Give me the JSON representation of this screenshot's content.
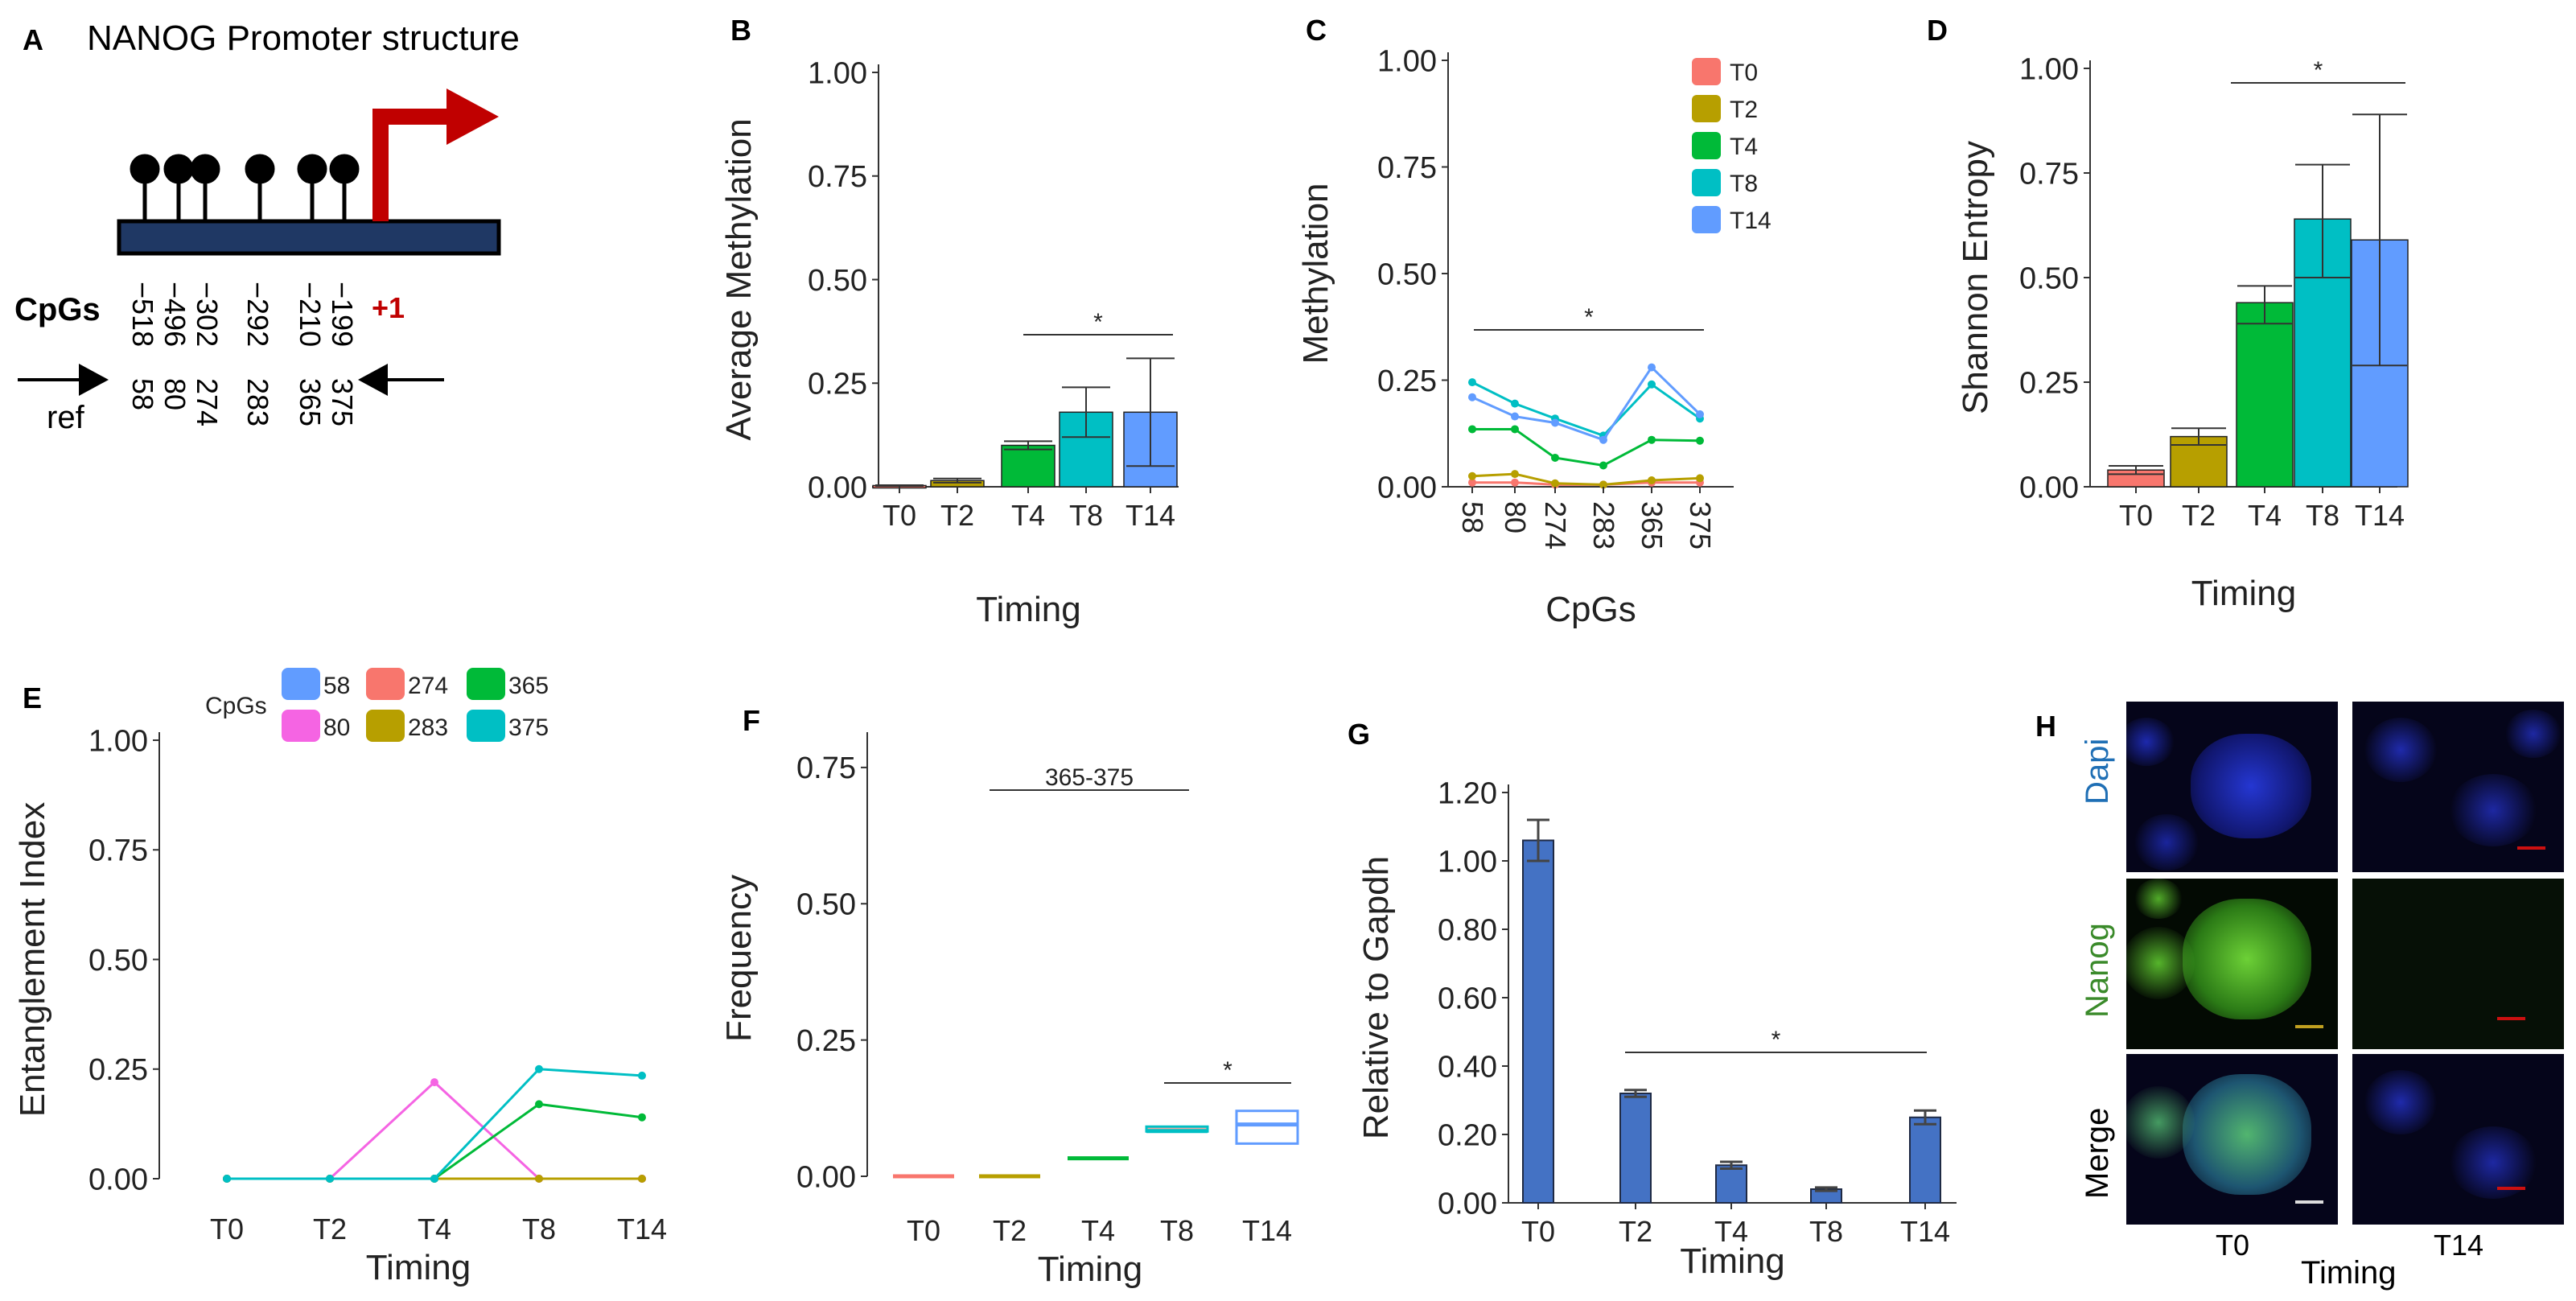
{
  "colors": {
    "T0": "#F8766D",
    "T2": "#B79F00",
    "T4": "#00BA38",
    "T8": "#00BFC4",
    "T14": "#619CFF",
    "pink": "#F564E3",
    "navy": "#1F3864",
    "arrow_red": "#C00000",
    "bar_blue": "#4472C4",
    "dapi": "#1F6FB5",
    "nanog": "#3A8A2A"
  },
  "panel_letters": [
    "A",
    "B",
    "C",
    "D",
    "E",
    "F",
    "G",
    "H"
  ],
  "panelA": {
    "title": "NANOG Promoter structure",
    "tss_label": "+1",
    "cpgs_label": "CpGs",
    "ref_label": "ref",
    "positions": [
      "−518",
      "−496",
      "−302",
      "−292",
      "−210",
      "−199"
    ],
    "refs": [
      "58",
      "80",
      "274",
      "283",
      "365",
      "375"
    ]
  },
  "chart_data": [
    {
      "panel": "B",
      "type": "bar",
      "ylabel": "Average Methylation",
      "xlabel": "Timing",
      "categories": [
        "T0",
        "T2",
        "T4",
        "T8",
        "T14"
      ],
      "values": [
        0.003,
        0.015,
        0.1,
        0.18,
        0.18
      ],
      "error_low": [
        0.002,
        0.01,
        0.09,
        0.12,
        0.05
      ],
      "error_high": [
        0.004,
        0.02,
        0.11,
        0.24,
        0.31
      ],
      "ylim": [
        0,
        1.0
      ],
      "yticks": [
        "0.00",
        "0.25",
        "0.50",
        "0.75",
        "1.00"
      ],
      "annotation": "*"
    },
    {
      "panel": "C",
      "type": "line",
      "ylabel": "Methylation",
      "xlabel": "CpGs",
      "categories": [
        "58",
        "80",
        "274",
        "283",
        "365",
        "375"
      ],
      "series": [
        {
          "name": "T0",
          "values": [
            0.01,
            0.01,
            0.005,
            0.005,
            0.01,
            0.01
          ]
        },
        {
          "name": "T2",
          "values": [
            0.025,
            0.03,
            0.008,
            0.005,
            0.015,
            0.02
          ]
        },
        {
          "name": "T4",
          "values": [
            0.135,
            0.135,
            0.068,
            0.05,
            0.11,
            0.108
          ]
        },
        {
          "name": "T8",
          "values": [
            0.245,
            0.195,
            0.16,
            0.12,
            0.24,
            0.16
          ]
        },
        {
          "name": "T14",
          "values": [
            0.21,
            0.165,
            0.15,
            0.11,
            0.28,
            0.17
          ]
        }
      ],
      "ylim": [
        0,
        1.0
      ],
      "yticks": [
        "0.00",
        "0.25",
        "0.50",
        "0.75",
        "1.00"
      ],
      "legend": "top-right",
      "annotation": "*"
    },
    {
      "panel": "D",
      "type": "bar",
      "ylabel": "Shannon Entropy",
      "xlabel": "Timing",
      "categories": [
        "T0",
        "T2",
        "T4",
        "T8",
        "T14"
      ],
      "values": [
        0.04,
        0.12,
        0.44,
        0.64,
        0.59
      ],
      "error_low": [
        0.03,
        0.1,
        0.39,
        0.5,
        0.29
      ],
      "error_high": [
        0.05,
        0.14,
        0.48,
        0.77,
        0.89
      ],
      "ylim": [
        0,
        1.0
      ],
      "yticks": [
        "0.00",
        "0.25",
        "0.50",
        "0.75",
        "1.00"
      ],
      "annotation": "*"
    },
    {
      "panel": "E",
      "type": "line",
      "ylabel": "Entanglement Index",
      "xlabel": "Timing",
      "categories": [
        "T0",
        "T2",
        "T4",
        "T8",
        "T14"
      ],
      "series": [
        {
          "name": "58",
          "values": [
            0,
            0,
            0,
            0,
            0
          ]
        },
        {
          "name": "80",
          "values": [
            0,
            0,
            0.22,
            0,
            0
          ]
        },
        {
          "name": "274",
          "values": [
            0,
            0,
            0,
            0,
            0
          ]
        },
        {
          "name": "283",
          "values": [
            0,
            0,
            0,
            0,
            0
          ]
        },
        {
          "name": "365",
          "values": [
            0,
            0,
            0,
            0.17,
            0.14
          ]
        },
        {
          "name": "375",
          "values": [
            0,
            0,
            0,
            0.25,
            0.235
          ]
        }
      ],
      "legend_title": "CpGs",
      "ylim": [
        0,
        1.0
      ],
      "yticks": [
        "0.00",
        "0.25",
        "0.50",
        "0.75",
        "1.00"
      ],
      "legend": "top"
    },
    {
      "panel": "F",
      "type": "box",
      "ylabel": "Frequency",
      "xlabel": "Timing",
      "categories": [
        "T0",
        "T2",
        "T4",
        "T8",
        "T14"
      ],
      "values": [
        0,
        0,
        0.033,
        0.083,
        0.095
      ],
      "ranges": [
        [
          0,
          0
        ],
        [
          0,
          0
        ],
        [
          0.033,
          0.033
        ],
        [
          0.075,
          0.1
        ],
        [
          0.06,
          0.12
        ]
      ],
      "ylim": [
        0,
        0.8
      ],
      "yticks": [
        "0.00",
        "0.25",
        "0.50",
        "0.75"
      ],
      "annotations": [
        "365-375",
        "*"
      ]
    },
    {
      "panel": "G",
      "type": "bar",
      "ylabel": "Relative to Gapdh",
      "xlabel": "Timing",
      "categories": [
        "T0",
        "T2",
        "T4",
        "T8",
        "T14"
      ],
      "values": [
        1.06,
        0.32,
        0.11,
        0.04,
        0.25
      ],
      "errors": [
        0.06,
        0.01,
        0.01,
        0.005,
        0.02
      ],
      "ylim": [
        0,
        1.2
      ],
      "yticks": [
        "0.00",
        "0.20",
        "0.40",
        "0.60",
        "0.80",
        "1.00",
        "1.20"
      ],
      "annotation": "*"
    }
  ],
  "panelH": {
    "rows": [
      "Dapi",
      "Nanog",
      "Merge"
    ],
    "cols": [
      "T0",
      "T14"
    ],
    "xlabel": "Timing"
  }
}
